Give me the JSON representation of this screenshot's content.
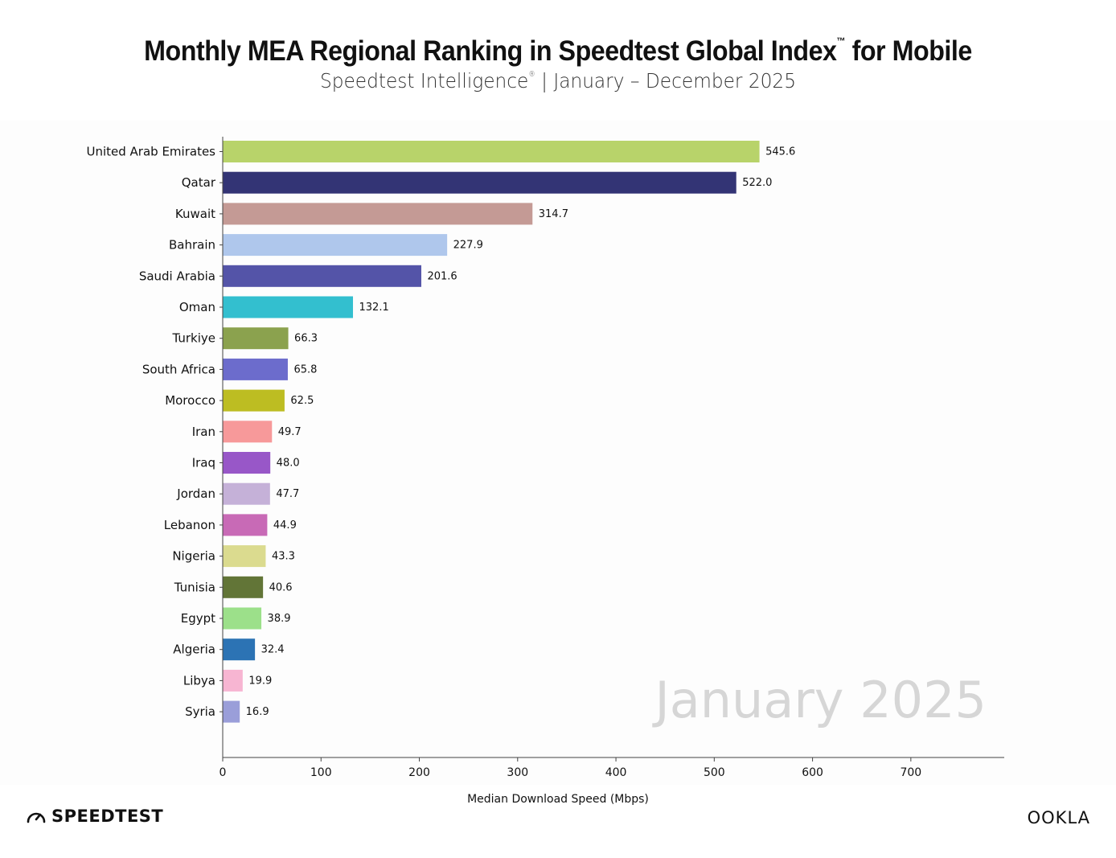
{
  "header": {
    "title": "Monthly MEA Regional Ranking in Speedtest Global Index",
    "title_mark": "™",
    "title_suffix": " for Mobile",
    "subtitle_brand": "Speedtest Intelligence",
    "subtitle_mark": "®",
    "subtitle_rest": " | January – December 2025"
  },
  "chart_data": {
    "type": "bar",
    "orientation": "horizontal",
    "title": "Monthly MEA Regional Ranking in Speedtest Global Index™ for Mobile",
    "subtitle": "Speedtest Intelligence® | January – December 2025",
    "xlabel": "Median Download Speed (Mbps)",
    "ylabel": "",
    "xlim": [
      0,
      795
    ],
    "xticks": [
      0,
      100,
      200,
      300,
      400,
      500,
      600,
      700
    ],
    "period_label": "January 2025",
    "grid": false,
    "categories": [
      "United Arab Emirates",
      "Qatar",
      "Kuwait",
      "Bahrain",
      "Saudi Arabia",
      "Oman",
      "Turkiye",
      "South Africa",
      "Morocco",
      "Iran",
      "Iraq",
      "Jordan",
      "Lebanon",
      "Nigeria",
      "Tunisia",
      "Egypt",
      "Algeria",
      "Libya",
      "Syria"
    ],
    "values": [
      545.6,
      522.0,
      314.7,
      227.9,
      201.6,
      132.1,
      66.3,
      65.8,
      62.5,
      49.7,
      48.0,
      47.7,
      44.9,
      43.3,
      40.6,
      38.9,
      32.4,
      19.9,
      16.9
    ],
    "value_labels": [
      "545.6",
      "522.0",
      "314.7",
      "227.9",
      "201.6",
      "132.1",
      "66.3",
      "65.8",
      "62.5",
      "49.7",
      "48.0",
      "47.7",
      "44.9",
      "43.3",
      "40.6",
      "38.9",
      "32.4",
      "19.9",
      "16.9"
    ],
    "colors": [
      "#b8d36a",
      "#333475",
      "#c49a95",
      "#afc7ec",
      "#5454a8",
      "#33bfcf",
      "#8ba24e",
      "#6c6ccc",
      "#bdbd22",
      "#f7999a",
      "#9857c8",
      "#c5b1d8",
      "#c86ab6",
      "#dbdb8f",
      "#627537",
      "#9ce08a",
      "#2c73b4",
      "#f7b5d2",
      "#9a9ed9"
    ]
  },
  "footer": {
    "brand_left": "SPEEDTEST",
    "brand_right": "OOKLA",
    "speed_icon": "speedometer-icon"
  }
}
